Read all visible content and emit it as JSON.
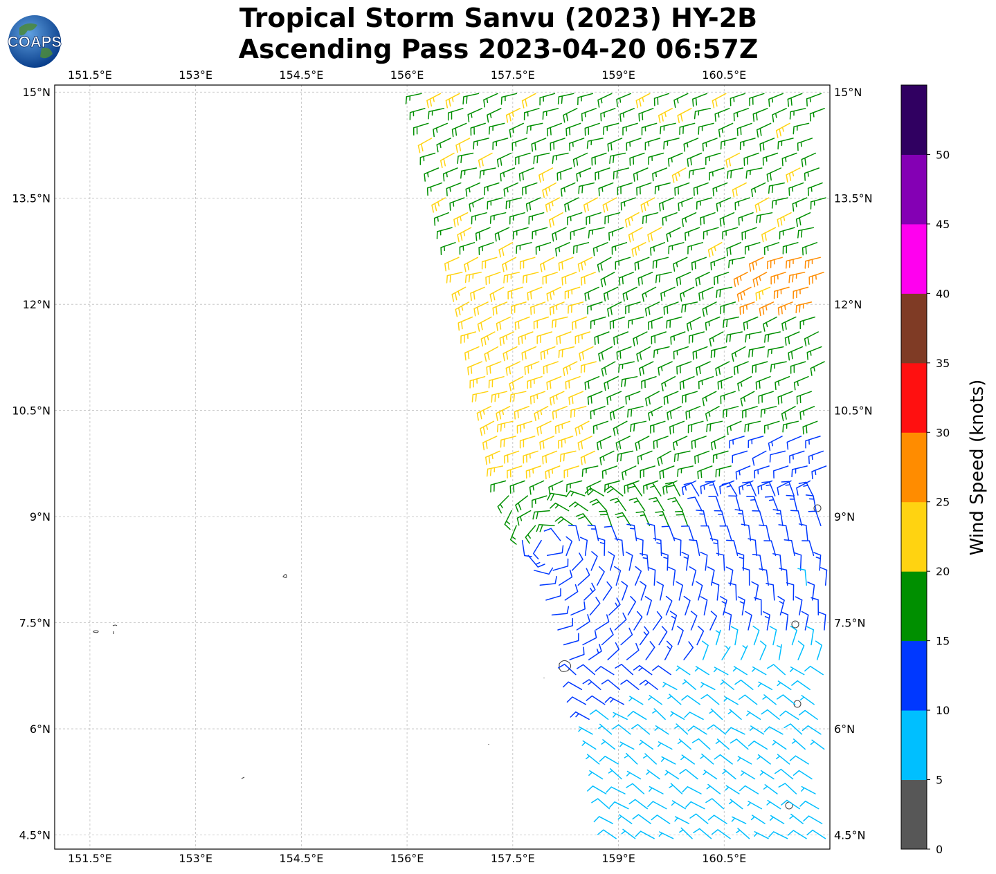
{
  "header": {
    "logo_text": "COAPS",
    "title_line1": "Tropical Storm Sanvu (2023) HY-2B",
    "title_line2": "Ascending Pass 2023-04-20 06:57Z"
  },
  "chart_data": {
    "type": "wind-barb-map",
    "title": "Tropical Storm Sanvu (2023) HY-2B Ascending Pass 2023-04-20 06:57Z",
    "lon_range": [
      151.0,
      162.0
    ],
    "lat_range": [
      4.3,
      15.1
    ],
    "lon_ticks": [
      "151.5°E",
      "153°E",
      "154.5°E",
      "156°E",
      "157.5°E",
      "159°E",
      "160.5°E"
    ],
    "lon_tick_values": [
      151.5,
      153.0,
      154.5,
      156.0,
      157.5,
      159.0,
      160.5
    ],
    "lat_ticks": [
      "15°N",
      "13.5°N",
      "12°N",
      "10.5°N",
      "9°N",
      "7.5°N",
      "6°N",
      "4.5°N"
    ],
    "lat_tick_values": [
      15.0,
      13.5,
      12.0,
      10.5,
      9.0,
      7.5,
      6.0,
      4.5
    ],
    "gridlines": "dashed light gray",
    "swath_left_edge": [
      [
        156.2,
        15.0
      ],
      [
        157.0,
        11.5
      ],
      [
        157.5,
        9.0
      ],
      [
        158.5,
        6.5
      ],
      [
        159.0,
        4.3
      ]
    ],
    "storm_center": {
      "lon": 158.0,
      "lat": 8.6
    },
    "colorbar": {
      "label": "Wind Speed (knots)",
      "ticks": [
        "0",
        "5",
        "10",
        "15",
        "20",
        "25",
        "30",
        "35",
        "40",
        "45",
        "50"
      ],
      "bounds": [
        0,
        5,
        10,
        15,
        20,
        25,
        30,
        35,
        40,
        45,
        50,
        55
      ],
      "colors": [
        "#575757",
        "#00bfff",
        "#0038ff",
        "#008f00",
        "#ffd311",
        "#ff8c00",
        "#ff1010",
        "#7f3b25",
        "#ff00ef",
        "#8400b4",
        "#300061"
      ]
    },
    "wind_zones": [
      {
        "region": "northern swath (13-15°N)",
        "speed_kt": "15-20",
        "direction": "easterly/northeasterly"
      },
      {
        "region": "central swath (10-12.5°N)",
        "speed_kt": "20-25",
        "direction": "easterly"
      },
      {
        "region": "northeast patch near 12°N 161°E",
        "speed_kt": "25-30",
        "direction": "easterly"
      },
      {
        "region": "around storm center",
        "speed_kt": "10-15",
        "direction": "cyclonic"
      },
      {
        "region": "southern swath (4.3-7.5°N)",
        "speed_kt": "5-10",
        "direction": "southeasterly"
      }
    ]
  }
}
